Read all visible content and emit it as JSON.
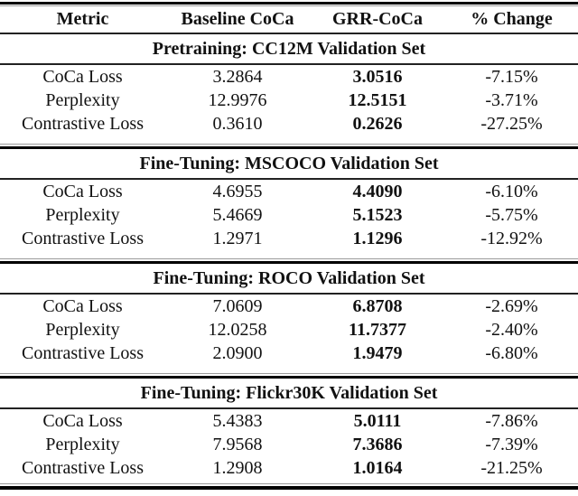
{
  "table": {
    "columns": {
      "metric": "Metric",
      "baseline": "Baseline CoCa",
      "grr": "GRR-CoCa",
      "change": "% Change"
    },
    "sections": [
      {
        "title": "Pretraining: CC12M Validation Set",
        "rows": [
          {
            "metric": "CoCa Loss",
            "baseline": "3.2864",
            "grr": "3.0516",
            "change": "-7.15%"
          },
          {
            "metric": "Perplexity",
            "baseline": "12.9976",
            "grr": "12.5151",
            "change": "-3.71%"
          },
          {
            "metric": "Contrastive Loss",
            "baseline": "0.3610",
            "grr": "0.2626",
            "change": "-27.25%"
          }
        ]
      },
      {
        "title": "Fine-Tuning: MSCOCO Validation Set",
        "rows": [
          {
            "metric": "CoCa Loss",
            "baseline": "4.6955",
            "grr": "4.4090",
            "change": "-6.10%"
          },
          {
            "metric": "Perplexity",
            "baseline": "5.4669",
            "grr": "5.1523",
            "change": "-5.75%"
          },
          {
            "metric": "Contrastive Loss",
            "baseline": "1.2971",
            "grr": "1.1296",
            "change": "-12.92%"
          }
        ]
      },
      {
        "title": "Fine-Tuning: ROCO Validation Set",
        "rows": [
          {
            "metric": "CoCa Loss",
            "baseline": "7.0609",
            "grr": "6.8708",
            "change": "-2.69%"
          },
          {
            "metric": "Perplexity",
            "baseline": "12.0258",
            "grr": "11.7377",
            "change": "-2.40%"
          },
          {
            "metric": "Contrastive Loss",
            "baseline": "2.0900",
            "grr": "1.9479",
            "change": "-6.80%"
          }
        ]
      },
      {
        "title": "Fine-Tuning: Flickr30K Validation Set",
        "rows": [
          {
            "metric": "CoCa Loss",
            "baseline": "5.4383",
            "grr": "5.0111",
            "change": "-7.86%"
          },
          {
            "metric": "Perplexity",
            "baseline": "7.9568",
            "grr": "7.3686",
            "change": "-7.39%"
          },
          {
            "metric": "Contrastive Loss",
            "baseline": "1.2908",
            "grr": "1.0164",
            "change": "-21.25%"
          }
        ]
      }
    ],
    "styles": {
      "text_color": "#111111",
      "rule_black": "#000000",
      "rule_gray": "#9b9b9b",
      "background": "#ffffff"
    }
  },
  "chart_data": {
    "type": "table",
    "title": "",
    "columns": [
      "Metric",
      "Baseline CoCa",
      "GRR-CoCa",
      "% Change"
    ],
    "sections": [
      {
        "header": "Pretraining: CC12M Validation Set",
        "rows": [
          [
            "CoCa Loss",
            3.2864,
            3.0516,
            "-7.15%"
          ],
          [
            "Perplexity",
            12.9976,
            12.5151,
            "-3.71%"
          ],
          [
            "Contrastive Loss",
            0.361,
            0.2626,
            "-27.25%"
          ]
        ]
      },
      {
        "header": "Fine-Tuning: MSCOCO Validation Set",
        "rows": [
          [
            "CoCa Loss",
            4.6955,
            4.409,
            "-6.10%"
          ],
          [
            "Perplexity",
            5.4669,
            5.1523,
            "-5.75%"
          ],
          [
            "Contrastive Loss",
            1.2971,
            1.1296,
            "-12.92%"
          ]
        ]
      },
      {
        "header": "Fine-Tuning: ROCO Validation Set",
        "rows": [
          [
            "CoCa Loss",
            7.0609,
            6.8708,
            "-2.69%"
          ],
          [
            "Perplexity",
            12.0258,
            11.7377,
            "-2.40%"
          ],
          [
            "Contrastive Loss",
            2.09,
            1.9479,
            "-6.80%"
          ]
        ]
      },
      {
        "header": "Fine-Tuning: Flickr30K Validation Set",
        "rows": [
          [
            "CoCa Loss",
            5.4383,
            5.0111,
            "-7.86%"
          ],
          [
            "Perplexity",
            7.9568,
            7.3686,
            "-7.39%"
          ],
          [
            "Contrastive Loss",
            1.2908,
            1.0164,
            "-21.25%"
          ]
        ]
      }
    ]
  }
}
